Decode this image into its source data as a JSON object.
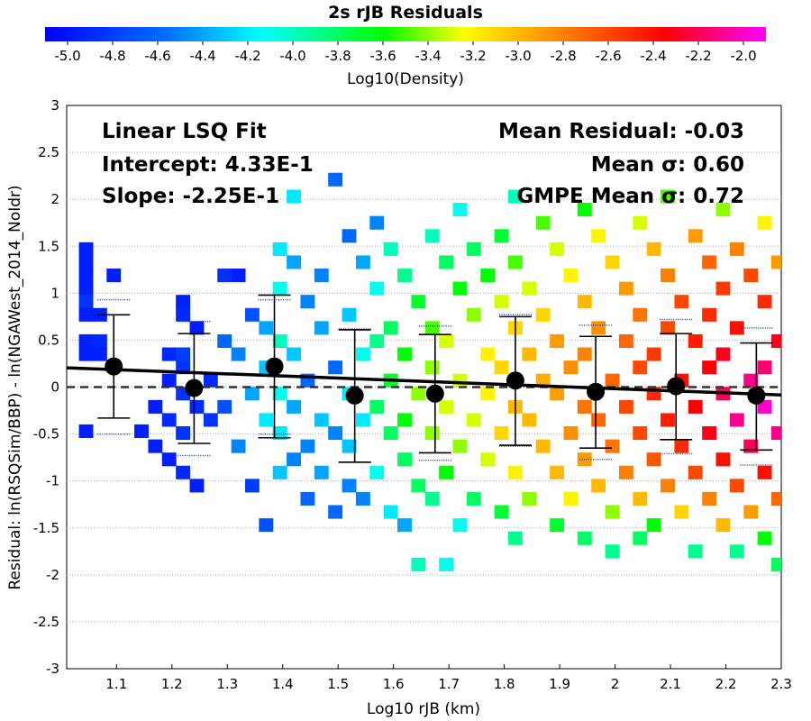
{
  "chart_data": {
    "type": "heatmap",
    "title": "2s rJB Residuals",
    "xlabel": "Log10 rJB (km)",
    "ylabel": "Residual: ln(RSQSim/BBP) - ln(NGAWest_2014_NoIdr)",
    "xlim": [
      1.01,
      2.3
    ],
    "ylim": [
      -3,
      3
    ],
    "xticks": [
      "1.1",
      "1.2",
      "1.3",
      "1.4",
      "1.5",
      "1.6",
      "1.7",
      "1.8",
      "1.9",
      "2",
      "2.1",
      "2.2",
      "2.3"
    ],
    "yticks": [
      "3",
      "2.5",
      "2",
      "1.5",
      "1",
      "0.5",
      "0",
      "-0.5",
      "-1",
      "-1.5",
      "-2",
      "-2.5",
      "-3"
    ],
    "grid": true,
    "colorbar": {
      "label": "Log10(Density)",
      "range": [
        -5.1,
        -1.9
      ],
      "ticks": [
        "-5.0",
        "-4.8",
        "-4.6",
        "-4.4",
        "-4.2",
        "-4.0",
        "-3.8",
        "-3.6",
        "-3.4",
        "-3.2",
        "-3.0",
        "-2.8",
        "-2.6",
        "-2.4",
        "-2.2",
        "-2.0"
      ],
      "colors": [
        "#0000ff",
        "#0070ff",
        "#00ffff",
        "#00ff00",
        "#ffff00",
        "#ff8000",
        "#ff0000",
        "#ff00ff"
      ]
    },
    "annotations": {
      "fit_title": "Linear LSQ Fit",
      "intercept": "Intercept: 4.33E-1",
      "slope": "Slope: -2.25E-1",
      "mean_residual": "Mean Residual: -0.03",
      "mean_sigma": "Mean σ: 0.60",
      "gmpe_sigma": "GMPE Mean σ: 0.72"
    },
    "fit_line": {
      "intercept": 0.433,
      "slope": -0.225
    },
    "bins": [
      {
        "x": 1.095,
        "mean": 0.22,
        "lo": -0.33,
        "hi": 0.77,
        "gmpe_lo": -0.5,
        "gmpe_hi": 0.93
      },
      {
        "x": 1.24,
        "mean": -0.01,
        "lo": -0.6,
        "hi": 0.57,
        "gmpe_lo": -0.73,
        "gmpe_hi": 0.7
      },
      {
        "x": 1.385,
        "mean": 0.22,
        "lo": -0.54,
        "hi": 0.98,
        "gmpe_lo": -0.5,
        "gmpe_hi": 0.93
      },
      {
        "x": 1.53,
        "mean": -0.09,
        "lo": -0.8,
        "hi": 0.61,
        "gmpe_lo": -0.8,
        "gmpe_hi": 0.62
      },
      {
        "x": 1.675,
        "mean": -0.07,
        "lo": -0.7,
        "hi": 0.56,
        "gmpe_lo": -0.78,
        "gmpe_hi": 0.65
      },
      {
        "x": 1.82,
        "mean": 0.07,
        "lo": -0.62,
        "hi": 0.75,
        "gmpe_lo": -0.63,
        "gmpe_hi": 0.77
      },
      {
        "x": 1.965,
        "mean": -0.05,
        "lo": -0.65,
        "hi": 0.54,
        "gmpe_lo": -0.77,
        "gmpe_hi": 0.66
      },
      {
        "x": 2.11,
        "mean": 0.01,
        "lo": -0.56,
        "hi": 0.57,
        "gmpe_lo": -0.71,
        "gmpe_hi": 0.72
      },
      {
        "x": 2.255,
        "mean": -0.09,
        "lo": -0.67,
        "hi": 0.47,
        "gmpe_lo": -0.83,
        "gmpe_hi": 0.63
      }
    ],
    "density_cells": [
      {
        "x": 1.045,
        "y": 1.47,
        "v": -4.95
      },
      {
        "x": 1.045,
        "y": 1.33,
        "v": -4.95
      },
      {
        "x": 1.045,
        "y": 1.19,
        "v": -4.95
      },
      {
        "x": 1.045,
        "y": 1.05,
        "v": -4.95
      },
      {
        "x": 1.045,
        "y": 0.91,
        "v": -4.85
      },
      {
        "x": 1.045,
        "y": 0.77,
        "v": -4.95
      },
      {
        "x": 1.045,
        "y": 0.49,
        "v": -4.95
      },
      {
        "x": 1.045,
        "y": 0.35,
        "v": -4.95
      },
      {
        "x": 1.07,
        "y": 0.77,
        "v": -4.95
      },
      {
        "x": 1.07,
        "y": 0.49,
        "v": -4.9
      },
      {
        "x": 1.07,
        "y": 0.35,
        "v": -4.95
      },
      {
        "x": 1.045,
        "y": -0.47,
        "v": -4.95
      },
      {
        "x": 1.145,
        "y": -0.47,
        "v": -4.95
      },
      {
        "x": 1.095,
        "y": 1.19,
        "v": -4.95
      },
      {
        "x": 1.195,
        "y": 0.35,
        "v": -4.9
      },
      {
        "x": 1.22,
        "y": 0.35,
        "v": -4.8
      },
      {
        "x": 1.22,
        "y": 0.21,
        "v": -4.85
      },
      {
        "x": 1.195,
        "y": 0.07,
        "v": -4.95
      },
      {
        "x": 1.22,
        "y": -0.07,
        "v": -4.85
      },
      {
        "x": 1.245,
        "y": -0.21,
        "v": -4.9
      },
      {
        "x": 1.17,
        "y": -0.21,
        "v": -4.95
      },
      {
        "x": 1.195,
        "y": -0.35,
        "v": -4.9
      },
      {
        "x": 1.22,
        "y": -0.49,
        "v": -4.85
      },
      {
        "x": 1.17,
        "y": -0.63,
        "v": -4.95
      },
      {
        "x": 1.195,
        "y": -0.77,
        "v": -4.95
      },
      {
        "x": 1.22,
        "y": -0.91,
        "v": -4.9
      },
      {
        "x": 1.245,
        "y": -1.05,
        "v": -4.95
      },
      {
        "x": 1.22,
        "y": 0.91,
        "v": -4.95
      },
      {
        "x": 1.22,
        "y": 0.77,
        "v": -4.9
      },
      {
        "x": 1.245,
        "y": 0.63,
        "v": -4.95
      },
      {
        "x": 1.27,
        "y": 0.07,
        "v": -4.9
      },
      {
        "x": 1.27,
        "y": -0.35,
        "v": -4.85
      },
      {
        "x": 1.295,
        "y": -0.21,
        "v": -4.7
      },
      {
        "x": 1.295,
        "y": 0.49,
        "v": -4.6
      },
      {
        "x": 1.32,
        "y": 0.35,
        "v": -4.5
      },
      {
        "x": 1.32,
        "y": -0.63,
        "v": -4.5
      },
      {
        "x": 1.32,
        "y": 1.19,
        "v": -4.95
      },
      {
        "x": 1.295,
        "y": 1.19,
        "v": -4.85
      },
      {
        "x": 1.345,
        "y": 0.77,
        "v": -4.7
      },
      {
        "x": 1.345,
        "y": -0.07,
        "v": -4.4
      },
      {
        "x": 1.37,
        "y": 0.21,
        "v": -4.3
      },
      {
        "x": 1.37,
        "y": -0.35,
        "v": -4.2
      },
      {
        "x": 1.37,
        "y": 0.63,
        "v": -4.4
      },
      {
        "x": 1.345,
        "y": -1.05,
        "v": -4.8
      },
      {
        "x": 1.37,
        "y": -1.47,
        "v": -4.7
      },
      {
        "x": 1.395,
        "y": 1.47,
        "v": -4.2
      },
      {
        "x": 1.395,
        "y": 1.05,
        "v": -4.1
      },
      {
        "x": 1.395,
        "y": 0.49,
        "v": -4.0
      },
      {
        "x": 1.395,
        "y": -0.07,
        "v": -4.1
      },
      {
        "x": 1.395,
        "y": -0.49,
        "v": -4.2
      },
      {
        "x": 1.395,
        "y": -0.91,
        "v": -4.3
      },
      {
        "x": 1.42,
        "y": 0.35,
        "v": -4.3
      },
      {
        "x": 1.42,
        "y": -0.21,
        "v": -4.4
      },
      {
        "x": 1.42,
        "y": -0.77,
        "v": -4.5
      },
      {
        "x": 1.42,
        "y": 1.33,
        "v": -4.4
      },
      {
        "x": 1.445,
        "y": 0.91,
        "v": -4.5
      },
      {
        "x": 1.445,
        "y": 0.07,
        "v": -4.6
      },
      {
        "x": 1.445,
        "y": -0.63,
        "v": -4.5
      },
      {
        "x": 1.445,
        "y": -1.19,
        "v": -4.6
      },
      {
        "x": 1.47,
        "y": 0.63,
        "v": -4.4
      },
      {
        "x": 1.47,
        "y": -0.35,
        "v": -4.3
      },
      {
        "x": 1.47,
        "y": -0.91,
        "v": -4.4
      },
      {
        "x": 1.47,
        "y": 1.19,
        "v": -4.5
      },
      {
        "x": 1.495,
        "y": 0.21,
        "v": -4.6
      },
      {
        "x": 1.495,
        "y": -0.49,
        "v": -4.5
      },
      {
        "x": 1.495,
        "y": -1.33,
        "v": -4.6
      },
      {
        "x": 1.52,
        "y": 1.61,
        "v": -4.6
      },
      {
        "x": 1.52,
        "y": 0.77,
        "v": -4.3
      },
      {
        "x": 1.52,
        "y": -0.07,
        "v": -4.2
      },
      {
        "x": 1.52,
        "y": -0.63,
        "v": -4.3
      },
      {
        "x": 1.52,
        "y": -1.05,
        "v": -4.5
      },
      {
        "x": 1.545,
        "y": 1.33,
        "v": -4.4
      },
      {
        "x": 1.545,
        "y": 0.35,
        "v": -4.1
      },
      {
        "x": 1.545,
        "y": -0.35,
        "v": -4.2
      },
      {
        "x": 1.545,
        "y": -1.19,
        "v": -4.5
      },
      {
        "x": 1.57,
        "y": 1.05,
        "v": -4.1
      },
      {
        "x": 1.57,
        "y": 0.49,
        "v": -3.9
      },
      {
        "x": 1.57,
        "y": -0.21,
        "v": -3.8
      },
      {
        "x": 1.57,
        "y": -0.91,
        "v": -4.1
      },
      {
        "x": 1.57,
        "y": 1.75,
        "v": -4.5
      },
      {
        "x": 1.595,
        "y": 1.47,
        "v": -4.0
      },
      {
        "x": 1.595,
        "y": 0.63,
        "v": -3.8
      },
      {
        "x": 1.595,
        "y": 0.07,
        "v": -3.7
      },
      {
        "x": 1.595,
        "y": -0.49,
        "v": -3.8
      },
      {
        "x": 1.595,
        "y": -1.33,
        "v": -4.2
      },
      {
        "x": 1.62,
        "y": 1.19,
        "v": -3.9
      },
      {
        "x": 1.62,
        "y": 0.35,
        "v": -3.6
      },
      {
        "x": 1.62,
        "y": -0.35,
        "v": -3.6
      },
      {
        "x": 1.62,
        "y": -0.77,
        "v": -3.8
      },
      {
        "x": 1.62,
        "y": -1.47,
        "v": -4.4
      },
      {
        "x": 1.645,
        "y": 0.91,
        "v": -3.7
      },
      {
        "x": 1.645,
        "y": -0.07,
        "v": -3.4
      },
      {
        "x": 1.645,
        "y": -1.05,
        "v": -3.8
      },
      {
        "x": 1.67,
        "y": 1.61,
        "v": -4.0
      },
      {
        "x": 1.67,
        "y": 0.63,
        "v": -3.5
      },
      {
        "x": 1.67,
        "y": 0.21,
        "v": -3.4
      },
      {
        "x": 1.67,
        "y": -0.49,
        "v": -3.4
      },
      {
        "x": 1.67,
        "y": -1.19,
        "v": -3.9
      },
      {
        "x": 1.695,
        "y": 1.33,
        "v": -3.8
      },
      {
        "x": 1.695,
        "y": 0.49,
        "v": -3.3
      },
      {
        "x": 1.695,
        "y": -0.21,
        "v": -3.3
      },
      {
        "x": 1.695,
        "y": -0.91,
        "v": -3.6
      },
      {
        "x": 1.72,
        "y": 1.89,
        "v": -4.1
      },
      {
        "x": 1.72,
        "y": 1.05,
        "v": -3.6
      },
      {
        "x": 1.72,
        "y": 0.07,
        "v": -3.3
      },
      {
        "x": 1.72,
        "y": -0.63,
        "v": -3.4
      },
      {
        "x": 1.72,
        "y": -1.47,
        "v": -4.1
      },
      {
        "x": 1.745,
        "y": 1.47,
        "v": -3.8
      },
      {
        "x": 1.745,
        "y": 0.77,
        "v": -3.4
      },
      {
        "x": 1.745,
        "y": -0.35,
        "v": -3.3
      },
      {
        "x": 1.745,
        "y": -1.19,
        "v": -3.8
      },
      {
        "x": 1.77,
        "y": 1.19,
        "v": -3.6
      },
      {
        "x": 1.77,
        "y": 0.35,
        "v": -3.2
      },
      {
        "x": 1.77,
        "y": -0.07,
        "v": -3.2
      },
      {
        "x": 1.77,
        "y": -0.77,
        "v": -3.3
      },
      {
        "x": 1.795,
        "y": 1.61,
        "v": -3.7
      },
      {
        "x": 1.795,
        "y": 0.91,
        "v": -3.3
      },
      {
        "x": 1.795,
        "y": 0.21,
        "v": -3.1
      },
      {
        "x": 1.795,
        "y": -0.49,
        "v": -3.1
      },
      {
        "x": 1.795,
        "y": -1.33,
        "v": -3.7
      },
      {
        "x": 1.82,
        "y": 2.03,
        "v": -4.0
      },
      {
        "x": 1.82,
        "y": 1.33,
        "v": -3.5
      },
      {
        "x": 1.82,
        "y": 0.63,
        "v": -3.1
      },
      {
        "x": 1.82,
        "y": -0.21,
        "v": -3.0
      },
      {
        "x": 1.82,
        "y": -0.91,
        "v": -3.2
      },
      {
        "x": 1.82,
        "y": -1.61,
        "v": -3.9
      },
      {
        "x": 1.845,
        "y": 1.05,
        "v": -3.3
      },
      {
        "x": 1.845,
        "y": 0.35,
        "v": -3.0
      },
      {
        "x": 1.845,
        "y": -0.35,
        "v": -3.0
      },
      {
        "x": 1.845,
        "y": -1.19,
        "v": -3.4
      },
      {
        "x": 1.87,
        "y": 1.75,
        "v": -3.5
      },
      {
        "x": 1.87,
        "y": 0.77,
        "v": -3.1
      },
      {
        "x": 1.87,
        "y": 0.07,
        "v": -2.95
      },
      {
        "x": 1.87,
        "y": -0.63,
        "v": -3.0
      },
      {
        "x": 1.895,
        "y": 1.47,
        "v": -3.3
      },
      {
        "x": 1.895,
        "y": 0.49,
        "v": -2.9
      },
      {
        "x": 1.895,
        "y": -0.07,
        "v": -2.9
      },
      {
        "x": 1.895,
        "y": -0.91,
        "v": -3.0
      },
      {
        "x": 1.895,
        "y": -1.47,
        "v": -3.7
      },
      {
        "x": 1.92,
        "y": 1.19,
        "v": -3.2
      },
      {
        "x": 1.92,
        "y": 0.21,
        "v": -2.85
      },
      {
        "x": 1.92,
        "y": -0.49,
        "v": -2.85
      },
      {
        "x": 1.92,
        "y": -1.19,
        "v": -3.2
      },
      {
        "x": 1.945,
        "y": 1.89,
        "v": -3.6
      },
      {
        "x": 1.945,
        "y": 0.91,
        "v": -3.0
      },
      {
        "x": 1.945,
        "y": 0.35,
        "v": -2.8
      },
      {
        "x": 1.945,
        "y": -0.21,
        "v": -2.75
      },
      {
        "x": 1.945,
        "y": -0.77,
        "v": -2.9
      },
      {
        "x": 1.945,
        "y": -1.61,
        "v": -3.8
      },
      {
        "x": 1.97,
        "y": 1.61,
        "v": -3.2
      },
      {
        "x": 1.97,
        "y": 0.63,
        "v": -2.85
      },
      {
        "x": 1.97,
        "y": -0.35,
        "v": -2.7
      },
      {
        "x": 1.97,
        "y": -1.05,
        "v": -3.0
      },
      {
        "x": 1.995,
        "y": 1.33,
        "v": -3.1
      },
      {
        "x": 1.995,
        "y": 0.07,
        "v": -2.7
      },
      {
        "x": 1.995,
        "y": -0.63,
        "v": -2.75
      },
      {
        "x": 1.995,
        "y": -1.33,
        "v": -3.4
      },
      {
        "x": 2.02,
        "y": 1.05,
        "v": -2.9
      },
      {
        "x": 2.02,
        "y": 0.49,
        "v": -2.7
      },
      {
        "x": 2.02,
        "y": -0.21,
        "v": -2.6
      },
      {
        "x": 2.02,
        "y": -0.91,
        "v": -2.8
      },
      {
        "x": 2.045,
        "y": 1.75,
        "v": -3.3
      },
      {
        "x": 2.045,
        "y": 0.77,
        "v": -2.75
      },
      {
        "x": 2.045,
        "y": 0.21,
        "v": -2.6
      },
      {
        "x": 2.045,
        "y": -0.49,
        "v": -2.6
      },
      {
        "x": 2.045,
        "y": -1.19,
        "v": -3.0
      },
      {
        "x": 2.07,
        "y": 1.47,
        "v": -3.0
      },
      {
        "x": 2.07,
        "y": 0.35,
        "v": -2.55
      },
      {
        "x": 2.07,
        "y": -0.07,
        "v": -2.5
      },
      {
        "x": 2.07,
        "y": -0.77,
        "v": -2.65
      },
      {
        "x": 2.07,
        "y": -1.47,
        "v": -3.6
      },
      {
        "x": 2.095,
        "y": 2.03,
        "v": -3.5
      },
      {
        "x": 2.095,
        "y": 1.19,
        "v": -2.8
      },
      {
        "x": 2.095,
        "y": 0.63,
        "v": -2.6
      },
      {
        "x": 2.095,
        "y": -0.35,
        "v": -2.45
      },
      {
        "x": 2.095,
        "y": -1.05,
        "v": -2.8
      },
      {
        "x": 2.12,
        "y": 0.91,
        "v": -2.6
      },
      {
        "x": 2.12,
        "y": 0.07,
        "v": -2.4
      },
      {
        "x": 2.12,
        "y": -0.63,
        "v": -2.5
      },
      {
        "x": 2.12,
        "y": -1.33,
        "v": -3.1
      },
      {
        "x": 2.145,
        "y": 1.61,
        "v": -2.9
      },
      {
        "x": 2.145,
        "y": 0.49,
        "v": -2.45
      },
      {
        "x": 2.145,
        "y": -0.21,
        "v": -2.35
      },
      {
        "x": 2.145,
        "y": -0.91,
        "v": -2.6
      },
      {
        "x": 2.17,
        "y": 1.33,
        "v": -2.7
      },
      {
        "x": 2.17,
        "y": 0.77,
        "v": -2.5
      },
      {
        "x": 2.17,
        "y": 0.21,
        "v": -2.35
      },
      {
        "x": 2.17,
        "y": -0.49,
        "v": -2.3
      },
      {
        "x": 2.17,
        "y": -1.19,
        "v": -2.8
      },
      {
        "x": 2.195,
        "y": 1.89,
        "v": -3.4
      },
      {
        "x": 2.195,
        "y": 1.05,
        "v": -2.55
      },
      {
        "x": 2.195,
        "y": 0.35,
        "v": -2.3
      },
      {
        "x": 2.195,
        "y": -0.07,
        "v": -2.2
      },
      {
        "x": 2.195,
        "y": -0.77,
        "v": -2.4
      },
      {
        "x": 2.195,
        "y": -1.47,
        "v": -3.0
      },
      {
        "x": 2.22,
        "y": 1.47,
        "v": -2.8
      },
      {
        "x": 2.22,
        "y": 0.63,
        "v": -2.4
      },
      {
        "x": 2.22,
        "y": -0.35,
        "v": -2.1
      },
      {
        "x": 2.22,
        "y": -1.05,
        "v": -2.6
      },
      {
        "x": 2.245,
        "y": 1.19,
        "v": -2.6
      },
      {
        "x": 2.245,
        "y": 0.07,
        "v": -2.1
      },
      {
        "x": 2.245,
        "y": -0.63,
        "v": -2.2
      },
      {
        "x": 2.245,
        "y": -1.33,
        "v": -2.9
      },
      {
        "x": 2.27,
        "y": 1.75,
        "v": -3.2
      },
      {
        "x": 2.27,
        "y": 0.91,
        "v": -2.5
      },
      {
        "x": 2.27,
        "y": 0.21,
        "v": -2.15
      },
      {
        "x": 2.27,
        "y": -0.21,
        "v": -2.0
      },
      {
        "x": 2.27,
        "y": -0.91,
        "v": -2.4
      },
      {
        "x": 2.27,
        "y": -1.61,
        "v": -3.6
      },
      {
        "x": 2.295,
        "y": 1.33,
        "v": -2.9
      },
      {
        "x": 2.295,
        "y": 0.49,
        "v": -2.3
      },
      {
        "x": 2.295,
        "y": -0.49,
        "v": -2.1
      },
      {
        "x": 2.295,
        "y": -1.19,
        "v": -2.7
      },
      {
        "x": 2.295,
        "y": -1.89,
        "v": -3.8
      },
      {
        "x": 1.645,
        "y": -1.89,
        "v": -4.0
      },
      {
        "x": 1.695,
        "y": -1.89,
        "v": -4.1
      },
      {
        "x": 1.995,
        "y": -1.75,
        "v": -3.9
      },
      {
        "x": 2.045,
        "y": -1.61,
        "v": -3.8
      },
      {
        "x": 2.145,
        "y": -1.75,
        "v": -3.9
      },
      {
        "x": 2.22,
        "y": -1.75,
        "v": -3.9
      },
      {
        "x": 1.495,
        "y": 2.21,
        "v": -4.6
      },
      {
        "x": 1.42,
        "y": 2.03,
        "v": -4.2
      }
    ]
  }
}
